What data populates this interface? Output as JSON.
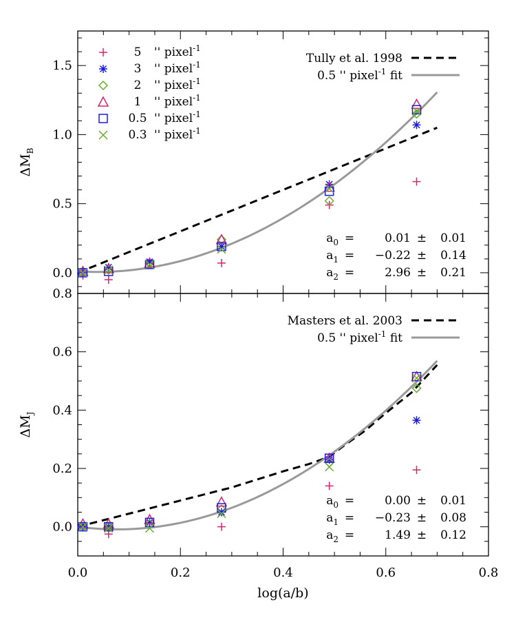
{
  "chart_data": [
    {
      "type": "scatter",
      "xlabel": "",
      "ylabel": "ΔM",
      "ylabel_sub": "B",
      "xlim": [
        0.0,
        0.8
      ],
      "ylim": [
        -0.15,
        1.75
      ],
      "yticks": [
        0.0,
        0.5,
        1.0,
        1.5
      ],
      "ytick_labels": [
        "0.0",
        "0.5",
        "1.0",
        "1.5"
      ],
      "legend_markers": [
        {
          "marker": "plus",
          "color": "#d6246e",
          "label_value": "5",
          "label_unit": "'' pixel",
          "label_exp": "-1"
        },
        {
          "marker": "asterisk",
          "color": "#1a1ae6",
          "label_value": "3",
          "label_unit": "'' pixel",
          "label_exp": "-1"
        },
        {
          "marker": "diamond",
          "color": "#6aad2e",
          "label_value": "2",
          "label_unit": "'' pixel",
          "label_exp": "-1"
        },
        {
          "marker": "triangle",
          "color": "#d6246e",
          "label_value": "1",
          "label_unit": "'' pixel",
          "label_exp": "-1"
        },
        {
          "marker": "square",
          "color": "#1a1ae6",
          "label_value": "0.5",
          "label_unit": "'' pixel",
          "label_exp": "-1"
        },
        {
          "marker": "cross",
          "color": "#6aad2e",
          "label_value": "0.3",
          "label_unit": "'' pixel",
          "label_exp": "-1"
        }
      ],
      "legend_lines": [
        {
          "label": "Tully et al. 1998",
          "style": "dashed",
          "color": "#000000"
        },
        {
          "label_pre": "0.5 '' pixel",
          "label_exp": "-1",
          "label_post": " fit",
          "style": "solid",
          "color": "#999999"
        }
      ],
      "x": [
        0.01,
        0.06,
        0.14,
        0.28,
        0.49,
        0.66
      ],
      "series": [
        {
          "values": [
            -0.02,
            -0.05,
            0.07,
            0.07,
            0.49,
            0.66
          ]
        },
        {
          "values": [
            0.0,
            0.04,
            0.08,
            0.19,
            0.64,
            1.07
          ]
        },
        {
          "values": [
            0.0,
            0.02,
            0.07,
            0.24,
            0.52,
            1.15
          ]
        },
        {
          "values": [
            0.01,
            0.03,
            0.07,
            0.24,
            0.62,
            1.22
          ]
        },
        {
          "values": [
            0.0,
            0.01,
            0.06,
            0.19,
            0.59,
            1.18
          ]
        },
        {
          "values": [
            0.0,
            0.02,
            0.06,
            0.17,
            0.61,
            1.17
          ]
        }
      ],
      "reference_line": {
        "x": [
          0.0,
          0.7
        ],
        "y": [
          0.0,
          1.05
        ]
      },
      "fit": {
        "a0": 0.01,
        "a1": -0.22,
        "a2": 2.96,
        "x_range": [
          0.0,
          0.7
        ]
      },
      "annotations": [
        {
          "label": "a",
          "sub": "0",
          "value": "0.01",
          "err": "0.01"
        },
        {
          "label": "a",
          "sub": "1",
          "value": "−0.22",
          "err": "0.14"
        },
        {
          "label": "a",
          "sub": "2",
          "value": "2.96",
          "err": "0.21"
        }
      ]
    },
    {
      "type": "scatter",
      "xlabel": "log(a/b)",
      "ylabel": "ΔM",
      "ylabel_sub": "J",
      "xlim": [
        0.0,
        0.8
      ],
      "ylim": [
        -0.1,
        0.8
      ],
      "xticks": [
        0.0,
        0.2,
        0.4,
        0.6,
        0.8
      ],
      "xtick_labels": [
        "0.0",
        "0.2",
        "0.4",
        "0.6",
        "0.8"
      ],
      "yticks": [
        0.0,
        0.2,
        0.4,
        0.6,
        0.8
      ],
      "ytick_labels": [
        "0.0",
        "0.2",
        "0.4",
        "0.6",
        "0.8"
      ],
      "legend_lines": [
        {
          "label": "Masters et al. 2003",
          "style": "dashed",
          "color": "#000000"
        },
        {
          "label_pre": "0.5 '' pixel",
          "label_exp": "-1",
          "label_post": " fit",
          "style": "solid",
          "color": "#999999"
        }
      ],
      "x": [
        0.01,
        0.06,
        0.14,
        0.28,
        0.49,
        0.66
      ],
      "series": [
        {
          "values": [
            0.0,
            -0.025,
            0.01,
            0.0,
            0.14,
            0.195
          ]
        },
        {
          "values": [
            0.0,
            0.0,
            0.015,
            0.05,
            0.23,
            0.365
          ]
        },
        {
          "values": [
            0.0,
            0.0,
            0.01,
            0.06,
            0.22,
            0.475
          ]
        },
        {
          "values": [
            0.01,
            0.01,
            0.025,
            0.085,
            0.235,
            0.515
          ]
        },
        {
          "values": [
            0.0,
            0.0,
            0.015,
            0.065,
            0.235,
            0.515
          ]
        },
        {
          "values": [
            0.0,
            -0.005,
            -0.005,
            0.045,
            0.205,
            0.51
          ]
        }
      ],
      "reference_line": {
        "x": [
          0.0,
          0.1,
          0.2,
          0.3,
          0.4,
          0.45,
          0.49,
          0.52,
          0.56,
          0.6,
          0.65,
          0.7
        ],
        "y": [
          0.0,
          0.045,
          0.09,
          0.135,
          0.19,
          0.215,
          0.24,
          0.28,
          0.33,
          0.39,
          0.46,
          0.555
        ]
      },
      "fit": {
        "a0": 0.0,
        "a1": -0.23,
        "a2": 1.49,
        "x_range": [
          0.0,
          0.7
        ]
      },
      "annotations": [
        {
          "label": "a",
          "sub": "0",
          "value": "0.00",
          "err": "0.01"
        },
        {
          "label": "a",
          "sub": "1",
          "value": "−0.23",
          "err": "0.08"
        },
        {
          "label": "a",
          "sub": "2",
          "value": "1.49",
          "err": "0.12"
        }
      ]
    }
  ]
}
